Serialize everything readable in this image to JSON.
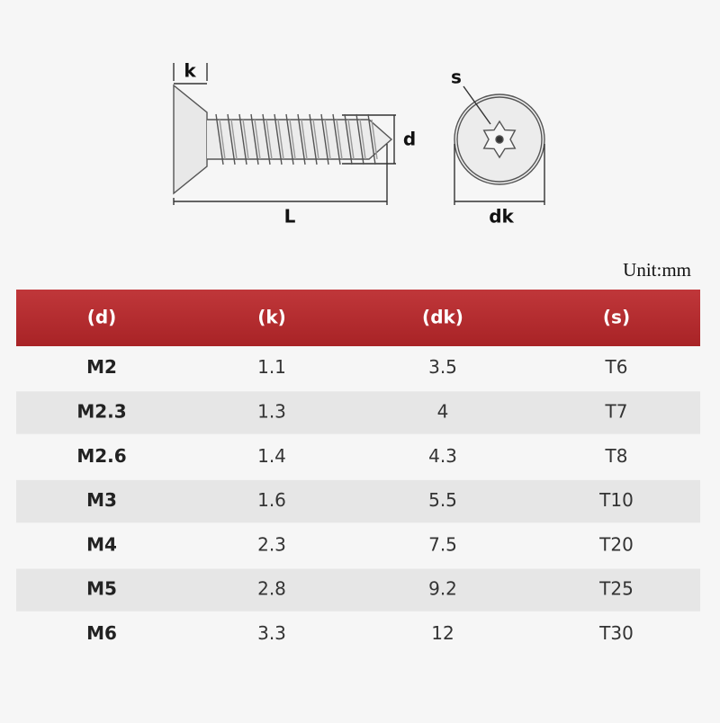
{
  "diagram": {
    "labels": {
      "k": "k",
      "d": "d",
      "L": "L",
      "s": "s",
      "dk": "dk"
    }
  },
  "unit": "Unit:mm",
  "table": {
    "header": [
      "(d)",
      "(k)",
      "(dk)",
      "(s)"
    ],
    "rows": [
      [
        "M2",
        "1.1",
        "3.5",
        "T6"
      ],
      [
        "M2.3",
        "1.3",
        "4",
        "T7"
      ],
      [
        "M2.6",
        "1.4",
        "4.3",
        "T8"
      ],
      [
        "M3",
        "1.6",
        "5.5",
        "T10"
      ],
      [
        "M4",
        "2.3",
        "7.5",
        "T20"
      ],
      [
        "M5",
        "2.8",
        "9.2",
        "T25"
      ],
      [
        "M6",
        "3.3",
        "12",
        "T30"
      ]
    ]
  }
}
